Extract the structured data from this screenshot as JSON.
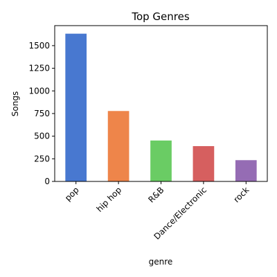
{
  "chart_data": {
    "type": "bar",
    "title": "Top Genres",
    "xlabel": "genre",
    "ylabel": "Songs",
    "categories": [
      "pop",
      "hip hop",
      "R&B",
      "Dance/Electronic",
      "rock"
    ],
    "values": [
      1632,
      778,
      452,
      390,
      235
    ],
    "colors": [
      "#4878d0",
      "#ee854a",
      "#6acc64",
      "#d65f5f",
      "#956cb4"
    ],
    "ylim": [
      0,
      1721
    ],
    "yticks": [
      0,
      250,
      500,
      750,
      1000,
      1250,
      1500
    ],
    "grid": false,
    "legend": "none"
  }
}
